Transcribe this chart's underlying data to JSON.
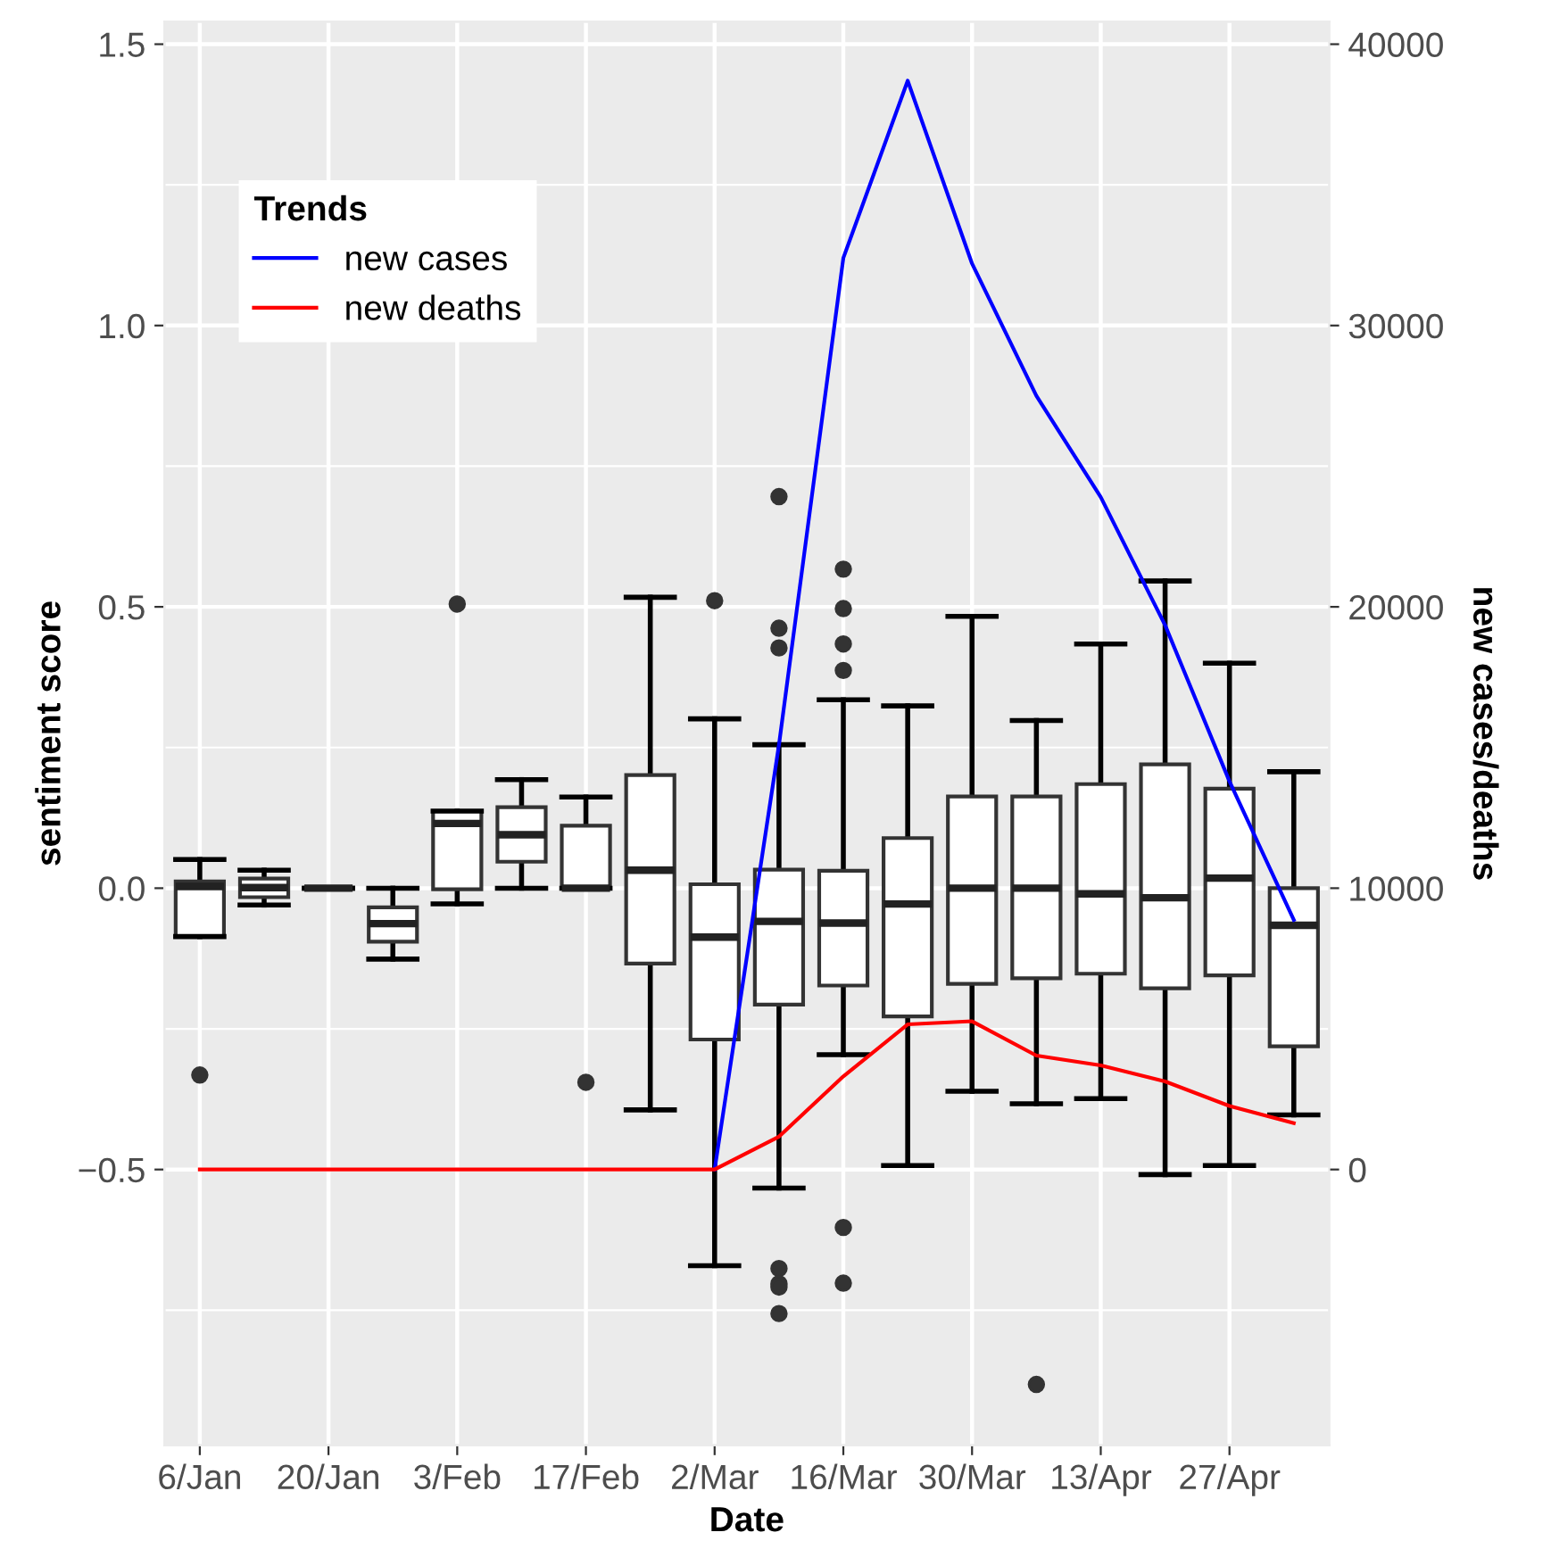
{
  "chart_data": {
    "type": "box",
    "xlabel": "Date",
    "ylabel": "sentiment score",
    "y2label": "new cases/deaths",
    "legend_title": "Trends",
    "legend": "top left",
    "grid": true,
    "categories": [
      "6/Jan",
      null,
      "20/Jan",
      null,
      "3/Feb",
      null,
      "17/Feb",
      null,
      "2/Mar",
      null,
      "16/Mar",
      null,
      "30/Mar",
      null,
      "13/Apr",
      null,
      "27/Apr",
      null
    ],
    "ylim": [
      -0.99,
      1.54
    ],
    "yticks": [
      {
        "value": -0.5,
        "label": "−0.5"
      },
      {
        "value": 0,
        "label": "0.0"
      },
      {
        "value": 0.5,
        "label": "0.5"
      },
      {
        "value": 1,
        "label": "1.0"
      },
      {
        "value": 1.5,
        "label": "1.5"
      }
    ],
    "y2lim": [
      -9800,
      40800
    ],
    "y2ticks": [
      0,
      10000,
      20000,
      30000,
      40000
    ],
    "colors": [
      "#ffffff",
      "#ffffff",
      "#333333",
      "#ffffff",
      "#ffffff",
      "#ffffff",
      "#ffffff",
      "#ffffff",
      "#ffffff",
      "#ffffff",
      "#ffffff",
      "#ffffff",
      "#ffffff",
      "#ffffff",
      "#ffffff",
      "#ffffff",
      "#ffffff",
      "#ffffff"
    ],
    "boxes": [
      {
        "low": -0.086,
        "q1": -0.086,
        "median": 0.003,
        "q3": 0.012,
        "high": 0.051,
        "outliers": [
          -0.332
        ]
      },
      {
        "low": -0.03,
        "q1": -0.016,
        "median": 0.001,
        "q3": 0.017,
        "high": 0.032
      },
      {
        "low": 0,
        "q1": 0,
        "median": 0,
        "q3": 0,
        "high": 0
      },
      {
        "low": -0.126,
        "q1": -0.095,
        "median": -0.063,
        "q3": -0.034,
        "high": 0
      },
      {
        "low": -0.028,
        "q1": -0.002,
        "median": 0.115,
        "q3": 0.137,
        "high": 0.137,
        "outliers": [
          0.505
        ]
      },
      {
        "low": 0,
        "q1": 0.047,
        "median": 0.095,
        "q3": 0.144,
        "high": 0.193
      },
      {
        "low": 0,
        "q1": 0,
        "median": 0,
        "q3": 0.111,
        "high": 0.162,
        "outliers": [
          -0.345
        ]
      },
      {
        "low": -0.394,
        "q1": -0.134,
        "median": 0.032,
        "q3": 0.201,
        "high": 0.517
      },
      {
        "low": -0.671,
        "q1": -0.269,
        "median": -0.087,
        "q3": 0.007,
        "high": 0.301,
        "outliers": [
          0.511
        ]
      },
      {
        "low": -0.533,
        "q1": -0.207,
        "median": -0.059,
        "q3": 0.033,
        "high": 0.255,
        "outliers": [
          0.696,
          0.462,
          0.427,
          -0.676,
          -0.703,
          -0.709,
          -0.756
        ]
      },
      {
        "low": -0.296,
        "q1": -0.173,
        "median": -0.062,
        "q3": 0.031,
        "high": 0.335,
        "outliers": [
          0.567,
          0.497,
          0.434,
          0.387,
          -0.603,
          -0.702
        ]
      },
      {
        "low": -0.493,
        "q1": -0.228,
        "median": -0.028,
        "q3": 0.089,
        "high": 0.324
      },
      {
        "low": -0.361,
        "q1": -0.17,
        "median": 0,
        "q3": 0.163,
        "high": 0.483
      },
      {
        "low": -0.383,
        "q1": -0.16,
        "median": 0,
        "q3": 0.163,
        "high": 0.298,
        "outliers": [
          -0.882
        ]
      },
      {
        "low": -0.374,
        "q1": -0.152,
        "median": -0.01,
        "q3": 0.185,
        "high": 0.434
      },
      {
        "low": -0.509,
        "q1": -0.178,
        "median": -0.017,
        "q3": 0.22,
        "high": 0.546
      },
      {
        "low": -0.493,
        "q1": -0.155,
        "median": 0.018,
        "q3": 0.177,
        "high": 0.4
      },
      {
        "low": -0.403,
        "q1": -0.281,
        "median": -0.066,
        "q3": 0,
        "high": 0.207
      }
    ],
    "series": [
      {
        "name": "new cases",
        "type": "line",
        "axis": "y2",
        "color": "#0000ff",
        "values": [
          null,
          null,
          null,
          null,
          null,
          null,
          null,
          null,
          0,
          15100,
          32400,
          38700,
          32200,
          27500,
          23900,
          19350,
          13800,
          8870
        ]
      },
      {
        "name": "new deaths",
        "type": "line",
        "axis": "y2",
        "color": "#ff0000",
        "values": [
          0,
          0,
          0,
          0,
          0,
          0,
          0,
          0,
          0,
          1170,
          3310,
          5160,
          5270,
          4050,
          3700,
          3130,
          2260,
          1650
        ]
      }
    ]
  }
}
